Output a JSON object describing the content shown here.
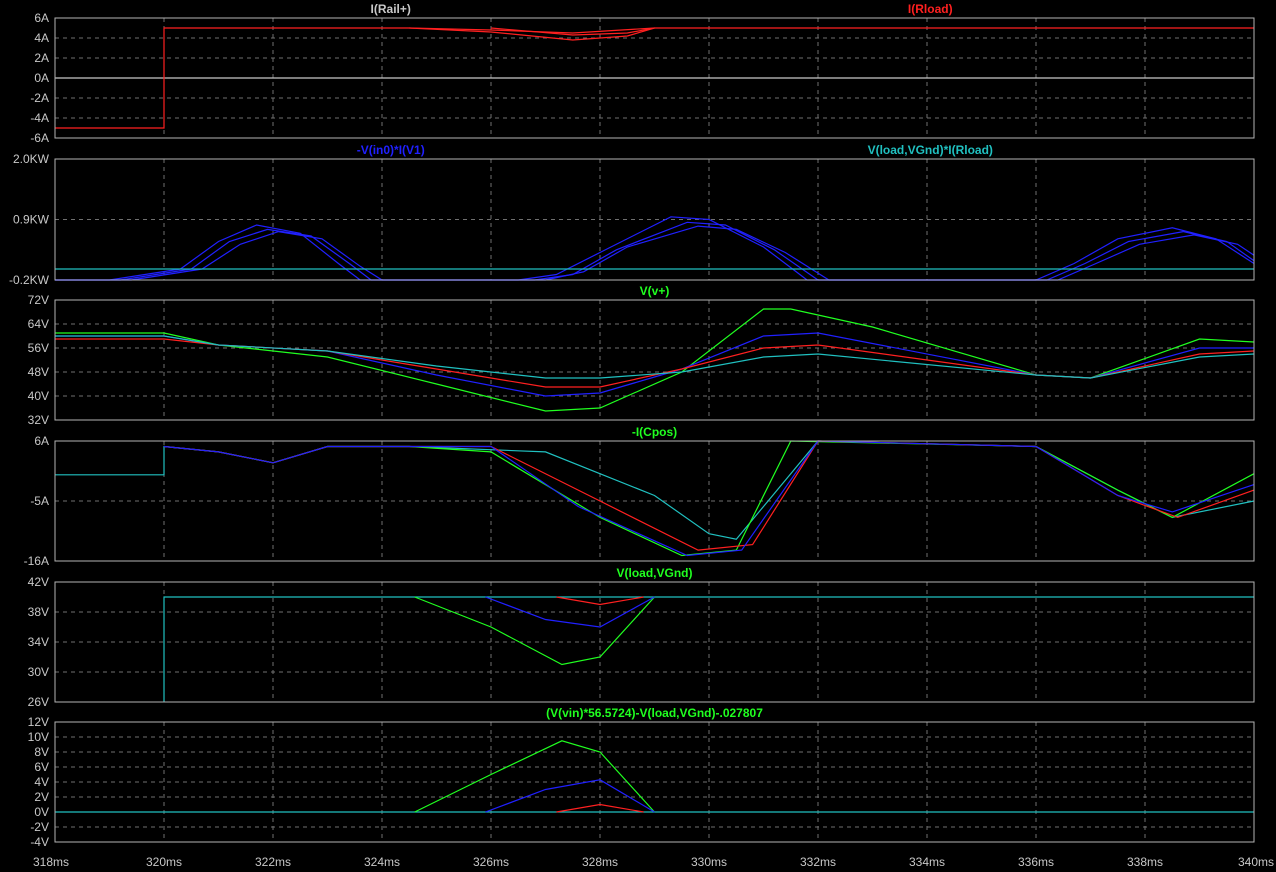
{
  "window": {
    "title": ""
  },
  "x_axis": {
    "ticks": [
      "318ms",
      "320ms",
      "322ms",
      "324ms",
      "326ms",
      "328ms",
      "330ms",
      "332ms",
      "334ms",
      "336ms",
      "338ms",
      "340ms"
    ],
    "range": [
      318,
      340
    ],
    "unit": "ms"
  },
  "colors": {
    "red": "#ff2020",
    "blue": "#2020ff",
    "green": "#20ff20",
    "cyan": "#20c0c0",
    "gray": "#c8c8c8",
    "grid": "#707070",
    "frame": "#b4b4b4"
  },
  "panes": [
    {
      "labels": [
        {
          "text": "I(Rail+)",
          "color": "gray",
          "pos": 0.28
        },
        {
          "text": "I(Rload)",
          "color": "red",
          "pos": 0.73
        }
      ],
      "ticks": [
        "6A",
        "4A",
        "2A",
        "0A",
        "-2A",
        "-4A",
        "-6A"
      ],
      "range": [
        -6,
        6
      ],
      "series": [
        {
          "color": "gray",
          "points": [
            [
              318,
              0
            ],
            [
              320,
              0
            ],
            [
              340,
              0
            ]
          ]
        },
        {
          "color": "red",
          "points": [
            [
              318,
              -5
            ],
            [
              320,
              -5
            ],
            [
              320,
              5
            ],
            [
              324.5,
              5
            ],
            [
              326,
              4.6
            ],
            [
              327.5,
              3.8
            ],
            [
              328.5,
              4.2
            ],
            [
              329,
              5
            ],
            [
              340,
              5
            ]
          ]
        },
        {
          "color": "red",
          "points": [
            [
              326,
              5
            ],
            [
              327.5,
              4.3
            ],
            [
              328.5,
              4.5
            ],
            [
              329,
              5
            ]
          ]
        },
        {
          "color": "red",
          "points": [
            [
              324.5,
              5
            ],
            [
              326,
              4.8
            ],
            [
              327.5,
              4.5
            ],
            [
              329,
              5
            ]
          ]
        }
      ]
    },
    {
      "labels": [
        {
          "text": "-V(in0)*I(V1)",
          "color": "blue",
          "pos": 0.28
        },
        {
          "text": "V(load,VGnd)*I(Rload)",
          "color": "cyan",
          "pos": 0.73
        }
      ],
      "ticks": [
        "2.0KW",
        "0.9KW",
        "-0.2KW"
      ],
      "range": [
        -0.2,
        2.0
      ],
      "series": [
        {
          "color": "blue",
          "points": [
            [
              318,
              -0.2
            ],
            [
              319,
              -0.2
            ],
            [
              320.3,
              0
            ],
            [
              321,
              0.5
            ],
            [
              321.7,
              0.8
            ],
            [
              322.5,
              0.65
            ],
            [
              323.2,
              0.1
            ],
            [
              323.6,
              -0.2
            ],
            [
              326.5,
              -0.2
            ],
            [
              327.2,
              -0.1
            ],
            [
              328,
              0.3
            ],
            [
              329.3,
              0.95
            ],
            [
              330,
              0.9
            ],
            [
              331,
              0.4
            ],
            [
              331.8,
              -0.2
            ],
            [
              336,
              -0.2
            ],
            [
              336.7,
              0.1
            ],
            [
              337.5,
              0.55
            ],
            [
              338.5,
              0.75
            ],
            [
              339.3,
              0.55
            ],
            [
              340,
              0.1
            ]
          ]
        },
        {
          "color": "blue",
          "points": [
            [
              318,
              -0.2
            ],
            [
              319.2,
              -0.2
            ],
            [
              320.5,
              0
            ],
            [
              321.2,
              0.5
            ],
            [
              321.9,
              0.72
            ],
            [
              322.7,
              0.6
            ],
            [
              323.4,
              0.1
            ],
            [
              323.8,
              -0.2
            ],
            [
              326.8,
              -0.2
            ],
            [
              327.5,
              -0.1
            ],
            [
              328.3,
              0.35
            ],
            [
              329.6,
              0.85
            ],
            [
              330.3,
              0.8
            ],
            [
              331.2,
              0.35
            ],
            [
              332,
              -0.2
            ],
            [
              336.2,
              -0.2
            ],
            [
              336.9,
              0.1
            ],
            [
              337.7,
              0.5
            ],
            [
              338.7,
              0.68
            ],
            [
              339.5,
              0.5
            ],
            [
              340,
              0.15
            ]
          ]
        },
        {
          "color": "blue",
          "points": [
            [
              318,
              -0.2
            ],
            [
              319.4,
              -0.2
            ],
            [
              320.7,
              0
            ],
            [
              321.4,
              0.45
            ],
            [
              322.1,
              0.68
            ],
            [
              322.9,
              0.55
            ],
            [
              323.6,
              0.05
            ],
            [
              324,
              -0.2
            ],
            [
              327,
              -0.2
            ],
            [
              327.7,
              -0.05
            ],
            [
              328.5,
              0.4
            ],
            [
              329.8,
              0.78
            ],
            [
              330.5,
              0.72
            ],
            [
              331.4,
              0.3
            ],
            [
              332.2,
              -0.2
            ],
            [
              336.4,
              -0.2
            ],
            [
              337.1,
              0.1
            ],
            [
              337.9,
              0.45
            ],
            [
              338.9,
              0.62
            ],
            [
              339.7,
              0.45
            ],
            [
              340,
              0.25
            ]
          ]
        },
        {
          "color": "cyan",
          "points": [
            [
              318,
              0
            ],
            [
              340,
              0
            ]
          ]
        }
      ]
    },
    {
      "labels": [
        {
          "text": "V(v+)",
          "color": "green",
          "pos": 0.5
        }
      ],
      "ticks": [
        "72V",
        "64V",
        "56V",
        "48V",
        "40V",
        "32V"
      ],
      "range": [
        32,
        72
      ],
      "series": [
        {
          "color": "green",
          "points": [
            [
              318,
              61
            ],
            [
              320,
              61
            ],
            [
              321,
              57
            ],
            [
              323,
              53
            ],
            [
              325,
              44
            ],
            [
              327,
              35
            ],
            [
              328,
              36
            ],
            [
              329.5,
              48
            ],
            [
              331,
              69
            ],
            [
              331.5,
              69
            ],
            [
              333,
              63
            ],
            [
              336,
              47
            ],
            [
              337,
              46
            ],
            [
              339,
              59
            ],
            [
              340,
              58
            ]
          ]
        },
        {
          "color": "blue",
          "points": [
            [
              318,
              60
            ],
            [
              320,
              60
            ],
            [
              321,
              57
            ],
            [
              323,
              55
            ],
            [
              325,
              47
            ],
            [
              327,
              40
            ],
            [
              328,
              41
            ],
            [
              329.5,
              49
            ],
            [
              331,
              60
            ],
            [
              332,
              61
            ],
            [
              336,
              47
            ],
            [
              337,
              46
            ],
            [
              339,
              56
            ],
            [
              340,
              56
            ]
          ]
        },
        {
          "color": "red",
          "points": [
            [
              318,
              59
            ],
            [
              320,
              59
            ],
            [
              321,
              57
            ],
            [
              323,
              55
            ],
            [
              325,
              49
            ],
            [
              327,
              43
            ],
            [
              328,
              43
            ],
            [
              329.5,
              49
            ],
            [
              331,
              56
            ],
            [
              332,
              57
            ],
            [
              336,
              47
            ],
            [
              337,
              46
            ],
            [
              339,
              54
            ],
            [
              340,
              55
            ]
          ]
        },
        {
          "color": "cyan",
          "points": [
            [
              318,
              60
            ],
            [
              320,
              60
            ],
            [
              321,
              57
            ],
            [
              323,
              55
            ],
            [
              325,
              50
            ],
            [
              327,
              46
            ],
            [
              328,
              46
            ],
            [
              329.5,
              48
            ],
            [
              331,
              53
            ],
            [
              332,
              54
            ],
            [
              336,
              47
            ],
            [
              337,
              46
            ],
            [
              339,
              53
            ],
            [
              340,
              54
            ]
          ]
        }
      ]
    },
    {
      "labels": [
        {
          "text": "-I(Cpos)",
          "color": "green",
          "pos": 0.5
        }
      ],
      "ticks": [
        "6A",
        "-5A",
        "-16A"
      ],
      "range": [
        -16,
        6
      ],
      "series": [
        {
          "color": "cyan",
          "points": [
            [
              318,
              -0.2
            ],
            [
              320,
              -0.2
            ],
            [
              320,
              5
            ],
            [
              321,
              4
            ],
            [
              322,
              2
            ],
            [
              323,
              5
            ],
            [
              324.5,
              5
            ],
            [
              327,
              4
            ],
            [
              329,
              -4
            ],
            [
              330,
              -11
            ],
            [
              330.5,
              -12
            ],
            [
              332,
              6
            ],
            [
              336,
              5
            ],
            [
              337.5,
              -3
            ],
            [
              338.5,
              -8
            ],
            [
              340,
              -5
            ]
          ]
        },
        {
          "color": "green",
          "points": [
            [
              320,
              5
            ],
            [
              321,
              4
            ],
            [
              322,
              2
            ],
            [
              323,
              5
            ],
            [
              324.5,
              5
            ],
            [
              326,
              4
            ],
            [
              328,
              -8
            ],
            [
              329.5,
              -15
            ],
            [
              330.5,
              -14
            ],
            [
              331.5,
              6
            ],
            [
              336,
              5
            ],
            [
              337.5,
              -3
            ],
            [
              338.5,
              -8
            ],
            [
              340,
              0
            ]
          ]
        },
        {
          "color": "red",
          "points": [
            [
              320,
              5
            ],
            [
              321,
              4
            ],
            [
              322,
              2
            ],
            [
              323,
              5
            ],
            [
              326,
              5
            ],
            [
              328,
              -5
            ],
            [
              329.8,
              -14
            ],
            [
              330.8,
              -13
            ],
            [
              332,
              6
            ],
            [
              336,
              5
            ],
            [
              337.5,
              -4
            ],
            [
              338.6,
              -8
            ],
            [
              340,
              -3
            ]
          ]
        },
        {
          "color": "blue",
          "points": [
            [
              320,
              5
            ],
            [
              321,
              4
            ],
            [
              322,
              2
            ],
            [
              323,
              5
            ],
            [
              326,
              5
            ],
            [
              327.6,
              -6
            ],
            [
              329.6,
              -15
            ],
            [
              330.6,
              -14
            ],
            [
              332,
              6
            ],
            [
              336,
              5
            ],
            [
              337.5,
              -4
            ],
            [
              338.5,
              -7
            ],
            [
              340,
              -2
            ]
          ]
        }
      ]
    },
    {
      "labels": [
        {
          "text": "V(load,VGnd)",
          "color": "green",
          "pos": 0.5
        }
      ],
      "ticks": [
        "42V",
        "38V",
        "34V",
        "30V",
        "26V"
      ],
      "range": [
        26,
        42
      ],
      "series": [
        {
          "color": "cyan",
          "points": [
            [
              320,
              26
            ],
            [
              320,
              40
            ],
            [
              340,
              40
            ]
          ]
        },
        {
          "color": "green",
          "points": [
            [
              324.6,
              40
            ],
            [
              326,
              36
            ],
            [
              327.3,
              31
            ],
            [
              328,
              32
            ],
            [
              329,
              40
            ]
          ]
        },
        {
          "color": "blue",
          "points": [
            [
              325.9,
              40
            ],
            [
              327,
              37
            ],
            [
              328,
              36
            ],
            [
              329,
              40
            ]
          ]
        },
        {
          "color": "red",
          "points": [
            [
              327.2,
              40
            ],
            [
              328,
              39
            ],
            [
              328.8,
              40
            ]
          ]
        }
      ]
    },
    {
      "labels": [
        {
          "text": "(V(vin)*56.5724)-V(load,VGnd)-.027807",
          "color": "green",
          "pos": 0.5
        }
      ],
      "ticks": [
        "12V",
        "10V",
        "8V",
        "6V",
        "4V",
        "2V",
        "0V",
        "-2V",
        "-4V"
      ],
      "range": [
        -4,
        12
      ],
      "series": [
        {
          "color": "cyan",
          "points": [
            [
              318,
              0
            ],
            [
              340,
              0
            ]
          ]
        },
        {
          "color": "green",
          "points": [
            [
              324.6,
              0
            ],
            [
              326,
              5
            ],
            [
              327.3,
              9.5
            ],
            [
              328,
              8
            ],
            [
              329,
              0
            ]
          ]
        },
        {
          "color": "blue",
          "points": [
            [
              325.9,
              0
            ],
            [
              327,
              3
            ],
            [
              328,
              4.3
            ],
            [
              329,
              0
            ]
          ]
        },
        {
          "color": "red",
          "points": [
            [
              327.2,
              0
            ],
            [
              328,
              1
            ],
            [
              328.8,
              0
            ]
          ]
        }
      ]
    }
  ]
}
